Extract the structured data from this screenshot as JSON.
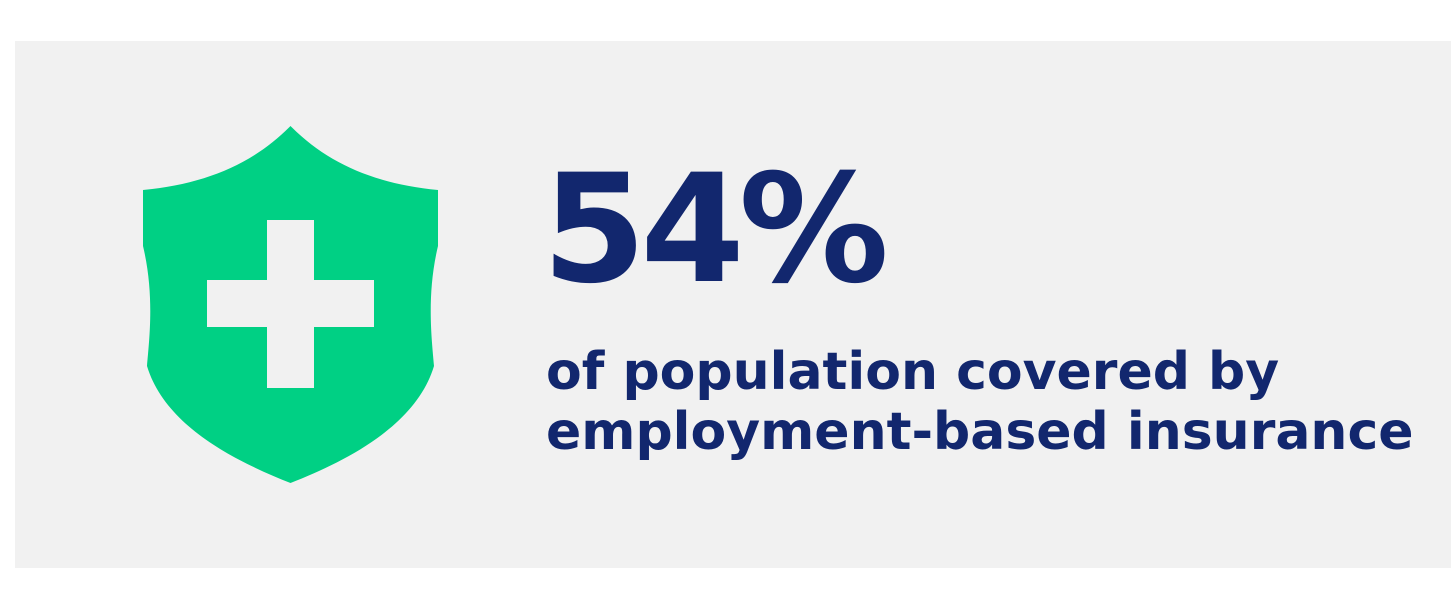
{
  "stat": {
    "value": "54%",
    "caption_line1": "of population covered by",
    "caption_line2": "employment-based insurance"
  },
  "icon": {
    "name": "health-insurance-shield-icon",
    "shield_color": "#00d084",
    "cross_color": "#f1f1f1"
  },
  "colors": {
    "background": "#f1f1f1",
    "text": "#12276e"
  }
}
